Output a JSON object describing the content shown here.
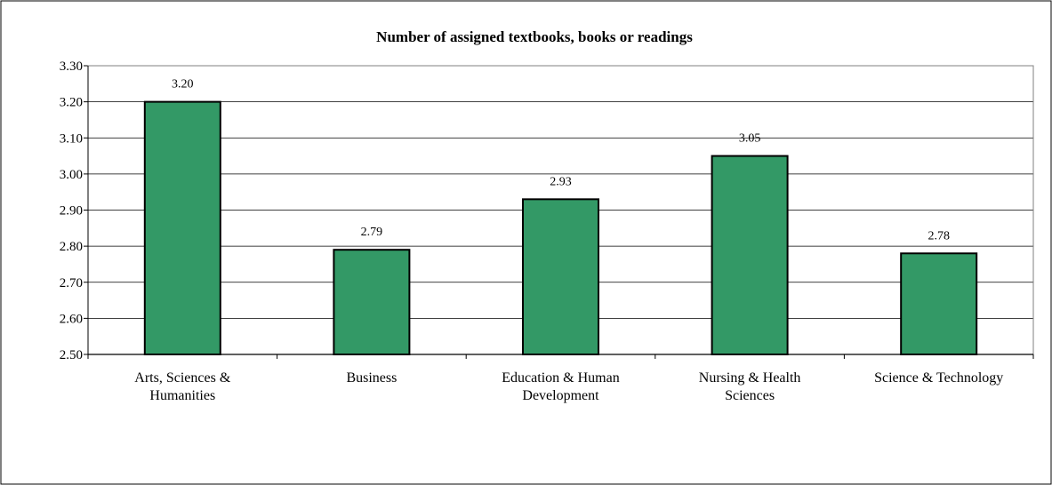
{
  "chart_data": {
    "type": "bar",
    "title": "Number of assigned textbooks, books or readings",
    "xlabel": "",
    "ylabel": "",
    "categories": [
      "Arts, Sciences & Humanities",
      "Business",
      "Education & Human Development",
      "Nursing & Health Sciences",
      "Science & Technology"
    ],
    "category_label_lines": [
      [
        "Arts, Sciences &",
        "Humanities"
      ],
      [
        "Business"
      ],
      [
        "Education & Human",
        "Development"
      ],
      [
        "Nursing & Health",
        "Sciences"
      ],
      [
        "Science & Technology"
      ]
    ],
    "values": [
      3.2,
      2.79,
      2.93,
      3.05,
      2.78
    ],
    "data_labels": [
      "3.20",
      "2.79",
      "2.93",
      "3.05",
      "2.78"
    ],
    "ylim": [
      2.5,
      3.3
    ],
    "yticks": [
      2.5,
      2.6,
      2.7,
      2.8,
      2.9,
      3.0,
      3.1,
      3.2,
      3.3
    ],
    "ytick_labels": [
      "2.50",
      "2.60",
      "2.70",
      "2.80",
      "2.90",
      "3.00",
      "3.10",
      "3.20",
      "3.30"
    ],
    "grid": true,
    "legend": "none",
    "bar_color": "#339966",
    "bar_edge_color": "#000000"
  }
}
